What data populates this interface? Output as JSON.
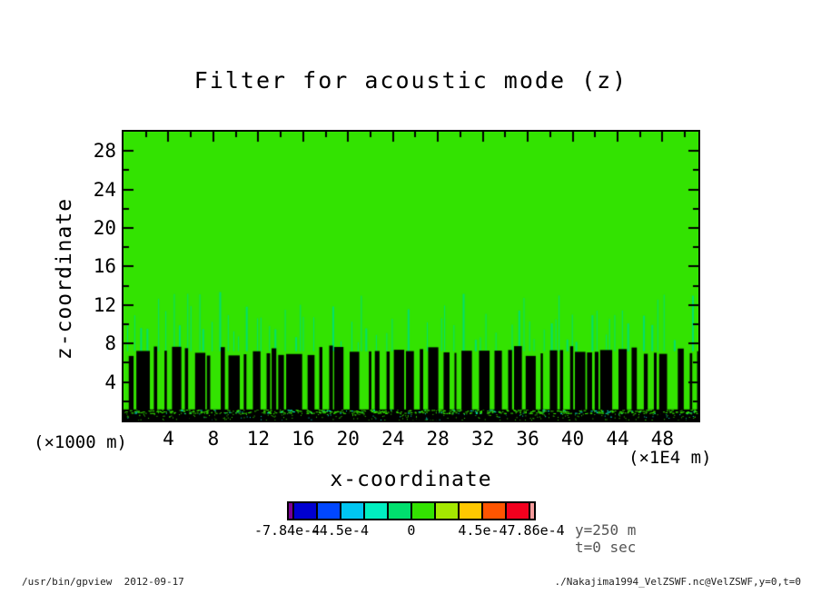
{
  "header": {
    "title": "Filter for acoustic mode (z)"
  },
  "annotations": {
    "y_level": "y=250 m",
    "time": "t=0 sec"
  },
  "footer": {
    "left": "/usr/bin/gpview  2012-09-17",
    "right": "./Nakajima1994_VelZSWF.nc@VelZSWF,y=0,t=0"
  },
  "chart_data": {
    "type": "heatmap",
    "title": "Filter for acoustic mode (z)",
    "xlabel": "x-coordinate",
    "ylabel": "z-coordinate",
    "x_axis_unit": "(×1E4 m)",
    "y_axis_unit": "(×1000 m)",
    "xlim": [
      0,
      51.2
    ],
    "ylim": [
      0,
      30
    ],
    "x_major_ticks": [
      4,
      8,
      12,
      16,
      20,
      24,
      28,
      32,
      36,
      40,
      44,
      48
    ],
    "x_minor_ticks": [
      2,
      6,
      10,
      14,
      18,
      22,
      26,
      30,
      34,
      38,
      42,
      46,
      50
    ],
    "y_major_ticks": [
      4,
      8,
      12,
      16,
      20,
      24,
      28
    ],
    "y_minor_ticks": [
      2,
      6,
      10,
      14,
      18,
      22,
      26,
      30
    ],
    "grid": false,
    "field_regions": [
      {
        "z_range": [
          13,
          30
        ],
        "content": "uniform green field (filter value 0)"
      },
      {
        "z_range": [
          7.5,
          13
        ],
        "content": "sparse thin teal vertical lines (small negative values) on green"
      },
      {
        "z_range": [
          1.1,
          7.5
        ],
        "content": "dense alternating black and green vertical stripes"
      },
      {
        "z_range": [
          0,
          1.1
        ],
        "content": "mostly black band with green and cyan speckles"
      }
    ],
    "field_colors": {
      "background_green": "#33E301",
      "teal_line": "#00DF6E",
      "stripe_black": "#000000",
      "speckle_cyan": "#00E2C8"
    },
    "colorbar": {
      "labels": [
        "-7.84e-4",
        "-4.5e-4",
        "0",
        "4.5e-4",
        "7.86e-4"
      ],
      "values": [
        -0.000784,
        -0.00045,
        0,
        0.00045,
        0.000786
      ],
      "segment_colors": [
        "#7B0095",
        "#0000D0",
        "#0047FF",
        "#00C6F2",
        "#00EFC0",
        "#00DF6E",
        "#33E301",
        "#A5E800",
        "#FFC800",
        "#FF5500",
        "#F2001E",
        "#F79C9C"
      ],
      "narrow_end_indices": [
        0,
        11
      ]
    }
  }
}
